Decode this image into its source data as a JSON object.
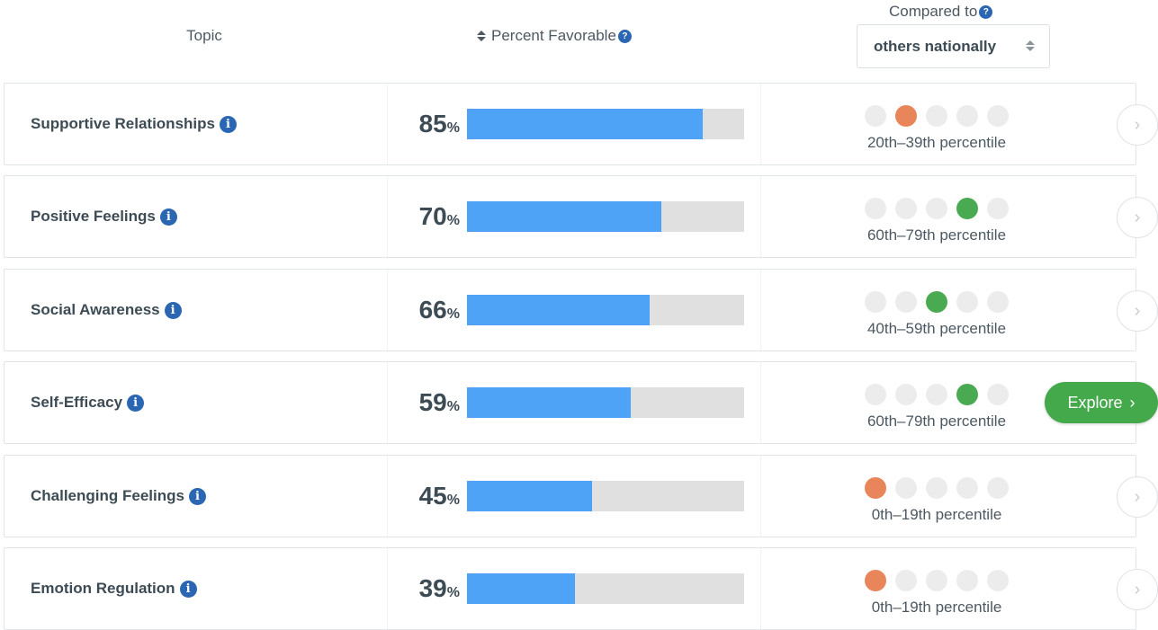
{
  "header": {
    "topic_label": "Topic",
    "percent_label": "Percent Favorable",
    "compared_label": "Compared to",
    "help_glyph": "?",
    "compare_select": {
      "value": "others nationally"
    }
  },
  "colors": {
    "bar_fill": "#4fa3f6",
    "bar_track": "#e0e0e0",
    "dot_orange": "#e8855a",
    "dot_green": "#4aaa52",
    "dot_empty": "#ececec",
    "info_blue": "#2a66b1",
    "explore_green": "#43a94b"
  },
  "rows": [
    {
      "topic": "Supportive Relationships",
      "percent": "85",
      "percent_sign": "%",
      "favorable_fraction": 0.85,
      "active_dot": 1,
      "dot_color": "orange",
      "percentile": "20th–39th percentile",
      "action": "chevron"
    },
    {
      "topic": "Positive Feelings",
      "percent": "70",
      "percent_sign": "%",
      "favorable_fraction": 0.7,
      "active_dot": 3,
      "dot_color": "green",
      "percentile": "60th–79th percentile",
      "action": "chevron"
    },
    {
      "topic": "Social Awareness",
      "percent": "66",
      "percent_sign": "%",
      "favorable_fraction": 0.66,
      "active_dot": 2,
      "dot_color": "green",
      "percentile": "40th–59th percentile",
      "action": "chevron"
    },
    {
      "topic": "Self-Efficacy",
      "percent": "59",
      "percent_sign": "%",
      "favorable_fraction": 0.59,
      "active_dot": 3,
      "dot_color": "green",
      "percentile": "60th–79th percentile",
      "action": "explore",
      "explore_label": "Explore"
    },
    {
      "topic": "Challenging Feelings",
      "percent": "45",
      "percent_sign": "%",
      "favorable_fraction": 0.45,
      "active_dot": 0,
      "dot_color": "orange",
      "percentile": "0th–19th percentile",
      "action": "chevron"
    },
    {
      "topic": "Emotion Regulation",
      "percent": "39",
      "percent_sign": "%",
      "favorable_fraction": 0.39,
      "active_dot": 0,
      "dot_color": "orange",
      "percentile": "0th–19th percentile",
      "action": "chevron"
    }
  ],
  "icons": {
    "info": "info-icon",
    "help": "question-icon",
    "sort": "sort-icon",
    "next": "chevron-right-icon"
  }
}
